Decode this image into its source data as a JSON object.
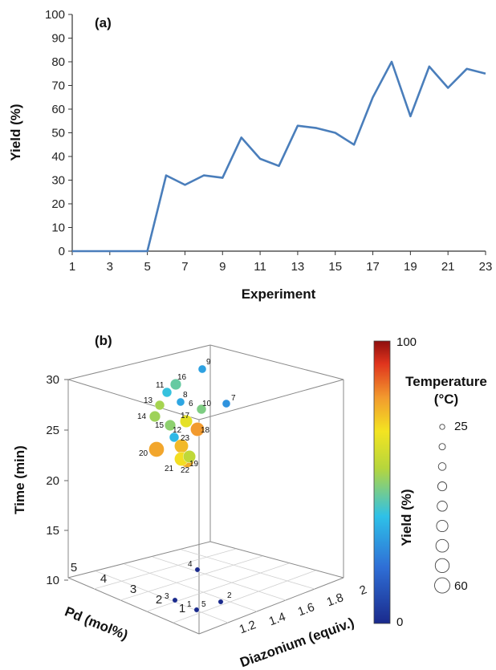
{
  "chart_data": [
    {
      "type": "line",
      "panel_label": "(a)",
      "xlabel": "Experiment",
      "ylabel": "Yield (%)",
      "xlim": [
        1,
        23
      ],
      "ylim": [
        0,
        100
      ],
      "x_ticks": [
        1,
        3,
        5,
        7,
        9,
        11,
        13,
        15,
        17,
        19,
        21,
        23
      ],
      "y_ticks": [
        0,
        10,
        20,
        30,
        40,
        50,
        60,
        70,
        80,
        90,
        100
      ],
      "grid": false,
      "color": "#4a7ebb",
      "series": [
        {
          "x": [
            1,
            2,
            3,
            4,
            5,
            6,
            7,
            8,
            9,
            10,
            11,
            12,
            13,
            14,
            15,
            16,
            17,
            18,
            19,
            20,
            21,
            22,
            23
          ],
          "values": [
            0,
            0,
            0,
            0,
            0,
            32,
            28,
            32,
            31,
            48,
            39,
            36,
            53,
            52,
            50,
            45,
            65,
            80,
            57,
            78,
            69,
            77,
            75
          ]
        }
      ]
    },
    {
      "type": "scatter",
      "subtype": "3d-bubble",
      "panel_label": "(b)",
      "xlabel": "Diazonium (equiv.)",
      "ylabel": "Pd (mol%)",
      "zlabel": "Time (min)",
      "x_ticks": [
        "1.2",
        "1.4",
        "1.6",
        "1.8",
        "2"
      ],
      "y_ticks": [
        "1",
        "2",
        "3",
        "4",
        "5"
      ],
      "z_ticks": [
        "10",
        "15",
        "20",
        "25",
        "30"
      ],
      "colorbar": {
        "label": "Yield (%)",
        "min_label": "0",
        "max_label": "100",
        "range": [
          0,
          100
        ]
      },
      "size_legend": {
        "title_line1": "Temperature",
        "title_line2": "(°C)",
        "min_label": "25",
        "max_label": "60",
        "steps": 9
      },
      "points": [
        {
          "label": "1",
          "yield": 0,
          "temperature": 25
        },
        {
          "label": "2",
          "yield": 0,
          "temperature": 25
        },
        {
          "label": "3",
          "yield": 0,
          "temperature": 25
        },
        {
          "label": "4",
          "yield": 0,
          "temperature": 25
        },
        {
          "label": "5",
          "yield": 0,
          "temperature": 25
        },
        {
          "label": "6",
          "yield": 32,
          "temperature": 35
        },
        {
          "label": "7",
          "yield": 28,
          "temperature": 35
        },
        {
          "label": "8",
          "yield": 32,
          "temperature": 35
        },
        {
          "label": "9",
          "yield": 31,
          "temperature": 35
        },
        {
          "label": "10",
          "yield": 48,
          "temperature": 40
        },
        {
          "label": "11",
          "yield": 39,
          "temperature": 40
        },
        {
          "label": "12",
          "yield": 36,
          "temperature": 40
        },
        {
          "label": "13",
          "yield": 53,
          "temperature": 40
        },
        {
          "label": "14",
          "yield": 52,
          "temperature": 45
        },
        {
          "label": "15",
          "yield": 50,
          "temperature": 45
        },
        {
          "label": "16",
          "yield": 45,
          "temperature": 45
        },
        {
          "label": "17",
          "yield": 65,
          "temperature": 50
        },
        {
          "label": "18",
          "yield": 80,
          "temperature": 55
        },
        {
          "label": "19",
          "yield": 57,
          "temperature": 50
        },
        {
          "label": "20",
          "yield": 78,
          "temperature": 60
        },
        {
          "label": "21",
          "yield": 69,
          "temperature": 55
        },
        {
          "label": "22",
          "yield": 77,
          "temperature": 55
        },
        {
          "label": "23",
          "yield": 75,
          "temperature": 55
        }
      ]
    }
  ]
}
